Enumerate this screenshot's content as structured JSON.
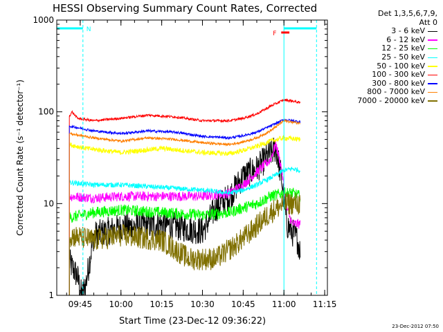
{
  "chart_data": {
    "type": "line",
    "title": "HESSI Observing Summary Count Rates, Corrected",
    "xlabel": "Start Time (23-Dec-12 09:36:22)",
    "ylabel": "Corrected Count Rate (s⁻¹ detector⁻¹)",
    "x_range": [
      "09:36:22",
      "11:16:00"
    ],
    "ylim": [
      1,
      1000
    ],
    "yscale": "log",
    "x_ticks": [
      "09:45",
      "10:00",
      "10:15",
      "10:30",
      "10:45",
      "11:00",
      "11:15"
    ],
    "y_ticks": [
      "1",
      "10",
      "100",
      "1000"
    ],
    "legend_header": [
      "Det 1,3,5,6,7,9,",
      "Att 0"
    ],
    "annotations": [
      {
        "label": "N",
        "color": "#00ffff",
        "start": "09:36:22",
        "end": "09:46:00"
      },
      {
        "label": "F",
        "color": "#ff0000",
        "start": "10:59:00",
        "end": "11:02:00"
      },
      {
        "label": "",
        "color": "#00ffff",
        "start": "11:00:00",
        "end": "11:12:00"
      }
    ],
    "vertical_lines": [
      {
        "time": "09:46:00",
        "color": "#00ffff",
        "style": "dashed"
      },
      {
        "time": "11:00:00",
        "color": "#00ffff",
        "style": "solid"
      },
      {
        "time": "11:12:00",
        "color": "#00ffff",
        "style": "dashed"
      }
    ],
    "series": [
      {
        "name": "3 - 6 keV",
        "color": "#000000",
        "noise": 0.35,
        "points": [
          [
            "09:41:00",
            2.3
          ],
          [
            "09:44:00",
            1.6
          ],
          [
            "09:45:30",
            1.0
          ],
          [
            "09:47:00",
            1.3
          ],
          [
            "09:50:00",
            4.5
          ],
          [
            "10:00:00",
            5.5
          ],
          [
            "10:15:00",
            6.0
          ],
          [
            "10:30:00",
            5.0
          ],
          [
            "10:35:00",
            9.0
          ],
          [
            "10:40:00",
            12.0
          ],
          [
            "10:45:00",
            20.0
          ],
          [
            "10:50:00",
            24.0
          ],
          [
            "10:55:00",
            35.0
          ],
          [
            "10:57:00",
            40.0
          ],
          [
            "10:59:00",
            20.0
          ],
          [
            "11:01:00",
            6.0
          ],
          [
            "11:05:00",
            4.0
          ],
          [
            "11:06:00",
            3.0
          ]
        ]
      },
      {
        "name": "6 - 12 keV",
        "color": "#ff00ff",
        "noise": 0.12,
        "points": [
          [
            "09:41:00",
            12.0
          ],
          [
            "09:50:00",
            11.5
          ],
          [
            "10:00:00",
            12.0
          ],
          [
            "10:15:00",
            12.0
          ],
          [
            "10:30:00",
            12.0
          ],
          [
            "10:40:00",
            13.0
          ],
          [
            "10:45:00",
            16.0
          ],
          [
            "10:50:00",
            22.0
          ],
          [
            "10:55:00",
            30.0
          ],
          [
            "10:57:00",
            45.0
          ],
          [
            "10:59:00",
            25.0
          ],
          [
            "11:01:00",
            9.0
          ],
          [
            "11:03:00",
            6.0
          ],
          [
            "11:06:00",
            6.0
          ]
        ]
      },
      {
        "name": "12 - 25 keV",
        "color": "#00ff00",
        "noise": 0.14,
        "points": [
          [
            "09:41:00",
            7.0
          ],
          [
            "09:50:00",
            8.0
          ],
          [
            "10:00:00",
            8.5
          ],
          [
            "10:15:00",
            8.0
          ],
          [
            "10:30:00",
            7.5
          ],
          [
            "10:40:00",
            8.0
          ],
          [
            "10:45:00",
            9.0
          ],
          [
            "10:50:00",
            10.0
          ],
          [
            "10:55:00",
            12.0
          ],
          [
            "11:00:00",
            13.0
          ],
          [
            "11:03:00",
            13.0
          ],
          [
            "11:06:00",
            12.0
          ]
        ]
      },
      {
        "name": "25 - 50 keV",
        "color": "#00ffff",
        "noise": 0.06,
        "points": [
          [
            "09:41:00",
            17.0
          ],
          [
            "09:50:00",
            16.0
          ],
          [
            "10:00:00",
            16.0
          ],
          [
            "10:15:00",
            15.0
          ],
          [
            "10:30:00",
            14.0
          ],
          [
            "10:40:00",
            13.0
          ],
          [
            "10:45:00",
            14.0
          ],
          [
            "10:50:00",
            16.0
          ],
          [
            "10:55:00",
            19.0
          ],
          [
            "11:00:00",
            23.0
          ],
          [
            "11:03:00",
            24.0
          ],
          [
            "11:06:00",
            23.0
          ]
        ]
      },
      {
        "name": "50 - 100 keV",
        "color": "#ffff00",
        "noise": 0.06,
        "points": [
          [
            "09:41:00",
            44.0
          ],
          [
            "09:47:00",
            40.0
          ],
          [
            "10:00:00",
            36.0
          ],
          [
            "10:15:00",
            40.0
          ],
          [
            "10:30:00",
            36.0
          ],
          [
            "10:40:00",
            35.0
          ],
          [
            "10:45:00",
            38.0
          ],
          [
            "10:50:00",
            42.0
          ],
          [
            "10:55:00",
            48.0
          ],
          [
            "11:00:00",
            52.0
          ],
          [
            "11:06:00",
            50.0
          ]
        ]
      },
      {
        "name": "100 - 300 keV",
        "color": "#ff0000",
        "noise": 0.03,
        "points": [
          [
            "09:41:00",
            90.0
          ],
          [
            "09:42:00",
            100.0
          ],
          [
            "09:44:00",
            85.0
          ],
          [
            "09:50:00",
            80.0
          ],
          [
            "10:00:00",
            85.0
          ],
          [
            "10:10:00",
            92.0
          ],
          [
            "10:20:00",
            88.0
          ],
          [
            "10:30:00",
            80.0
          ],
          [
            "10:40:00",
            80.0
          ],
          [
            "10:45:00",
            85.0
          ],
          [
            "10:50:00",
            95.0
          ],
          [
            "10:55:00",
            115.0
          ],
          [
            "11:00:00",
            135.0
          ],
          [
            "11:04:00",
            130.0
          ],
          [
            "11:06:00",
            125.0
          ]
        ]
      },
      {
        "name": "300 - 800 keV",
        "color": "#0000ff",
        "noise": 0.03,
        "points": [
          [
            "09:41:00",
            70.0
          ],
          [
            "09:50:00",
            62.0
          ],
          [
            "10:00:00",
            58.0
          ],
          [
            "10:10:00",
            62.0
          ],
          [
            "10:20:00",
            60.0
          ],
          [
            "10:30:00",
            54.0
          ],
          [
            "10:40:00",
            52.0
          ],
          [
            "10:45:00",
            55.0
          ],
          [
            "10:50:00",
            60.0
          ],
          [
            "10:55:00",
            70.0
          ],
          [
            "11:00:00",
            82.0
          ],
          [
            "11:06:00",
            78.0
          ]
        ]
      },
      {
        "name": "800 - 7000 keV",
        "color": "#ff7f00",
        "noise": 0.03,
        "points": [
          [
            "09:41:00",
            58.0
          ],
          [
            "09:50:00",
            52.0
          ],
          [
            "10:00:00",
            48.0
          ],
          [
            "10:10:00",
            52.0
          ],
          [
            "10:20:00",
            50.0
          ],
          [
            "10:30:00",
            46.0
          ],
          [
            "10:40:00",
            44.0
          ],
          [
            "10:45:00",
            47.0
          ],
          [
            "10:50:00",
            52.0
          ],
          [
            "10:55:00",
            62.0
          ],
          [
            "11:00:00",
            80.0
          ],
          [
            "11:06:00",
            75.0
          ]
        ]
      },
      {
        "name": "7000 - 20000 keV",
        "color": "#807000",
        "noise": 0.28,
        "points": [
          [
            "09:41:00",
            4.5
          ],
          [
            "09:50:00",
            4.0
          ],
          [
            "10:00:00",
            4.5
          ],
          [
            "10:15:00",
            4.0
          ],
          [
            "10:25:00",
            2.5
          ],
          [
            "10:35:00",
            2.5
          ],
          [
            "10:42:00",
            3.5
          ],
          [
            "10:48:00",
            5.0
          ],
          [
            "10:55:00",
            8.0
          ],
          [
            "11:00:00",
            10.0
          ],
          [
            "11:06:00",
            10.0
          ]
        ]
      }
    ],
    "footer_timestamp": "23-Dec-2012 07:50"
  }
}
